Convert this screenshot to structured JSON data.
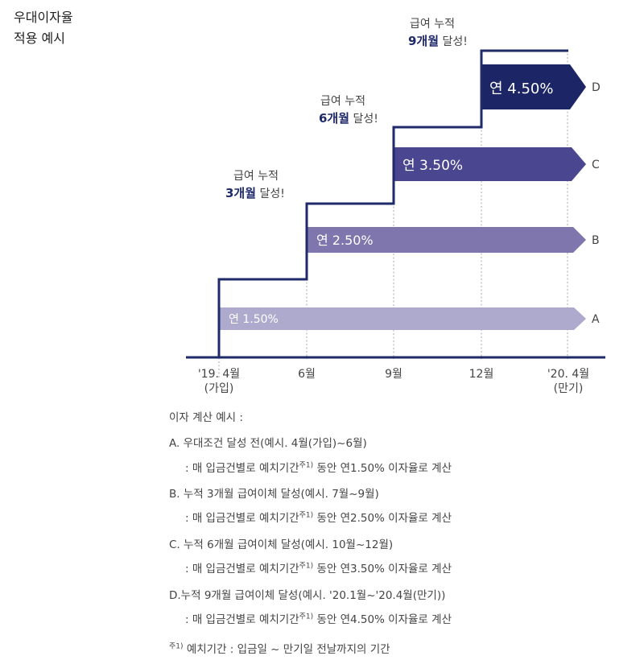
{
  "title": {
    "line1": "우대이자율",
    "line2": "적용 예시"
  },
  "colors": {
    "navy": "#1f2a6b",
    "arrow_a": "#aeaacd",
    "arrow_b": "#7e76ad",
    "arrow_c": "#4b4690",
    "arrow_d": "#1c2667",
    "gridline": "#aaaaaa"
  },
  "arrows": [
    {
      "letter": "A",
      "rate": "연 1.50%"
    },
    {
      "letter": "B",
      "rate": "연 2.50%"
    },
    {
      "letter": "C",
      "rate": "연 3.50%"
    },
    {
      "letter": "D",
      "rate": "연 4.50%"
    }
  ],
  "milestones": [
    {
      "line1": "급여 누적",
      "months": "3개월",
      "suffix": " 달성!"
    },
    {
      "line1": "급여 누적",
      "months": "6개월",
      "suffix": " 달성!"
    },
    {
      "line1": "급여 누적",
      "months": "9개월",
      "suffix": " 달성!"
    }
  ],
  "x_ticks": [
    {
      "line1": "'19. 4월",
      "line2": "(가입)"
    },
    {
      "line1": "6월",
      "line2": ""
    },
    {
      "line1": "9월",
      "line2": ""
    },
    {
      "line1": "12월",
      "line2": ""
    },
    {
      "line1": "'20. 4월",
      "line2": "(만기)"
    }
  ],
  "notes": {
    "header": "이자 계산 예시 :",
    "items": [
      {
        "title": "A. 우대조건 달성 전(예시. 4월(가입)~6월)",
        "detail_pre": ": 매 입금건별로 예치기간",
        "sup": "주1)",
        "detail_post": " 동안 연1.50% 이자율로 계산"
      },
      {
        "title": "B. 누적 3개월 급여이체 달성(예시. 7월~9월)",
        "detail_pre": ": 매 입금건별로 예치기간",
        "sup": "주1)",
        "detail_post": " 동안 연2.50% 이자율로 계산"
      },
      {
        "title": "C. 누적 6개월 급여이체 달성(예시. 10월~12월)",
        "detail_pre": ": 매 입금건별로 예치기간",
        "sup": "주1)",
        "detail_post": " 동안 연3.50% 이자율로 계산"
      },
      {
        "title": "D.누적 9개월 급여이체 달성(예시. '20.1월~'20.4월(만기))",
        "detail_pre": ": 매 입금건별로 예치기간",
        "sup": "주1)",
        "detail_post": " 동안 연4.50% 이자율로 계산"
      }
    ],
    "footnote_sup": "주1)",
    "footnote_text": " 예치기간 : 입금일 ~ 만기일 전날까지의 기간"
  }
}
